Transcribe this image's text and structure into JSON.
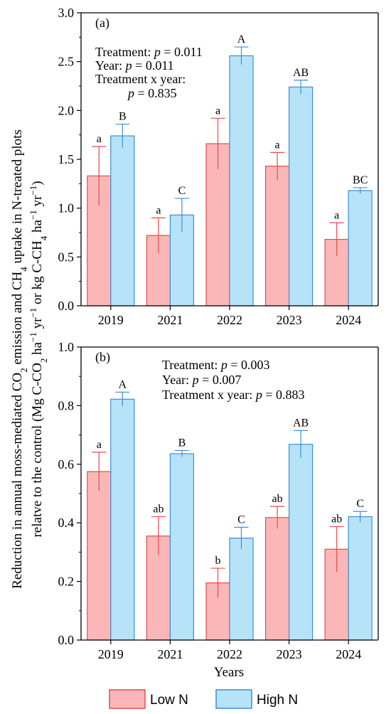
{
  "colors": {
    "low_fill": "#fbb7b7",
    "low_stroke": "#e84a4a",
    "high_fill": "#b7e3f9",
    "high_stroke": "#3a8fd8",
    "axis": "#000000"
  },
  "ylabel": {
    "line1_a": "Reduction in annual moss-mediated CO",
    "line1_sub1": "2",
    "line1_b": " emission and CH",
    "line1_sub2": "4",
    "line1_c": " uptake in N-treated plots",
    "line2_a": "relatve to the control (Mg C-CO",
    "line2_sub1": "2",
    "line2_b": " ha",
    "line2_sup1": "−1",
    "line2_c": " yr",
    "line2_sup2": "−1",
    "line2_d": " or kg C-CH",
    "line2_sub2": "4",
    "line2_e": " ha",
    "line2_sup3": "−1",
    "line2_f": " yr",
    "line2_sup4": "−1",
    "line2_g": ")"
  },
  "xlabel": "Years",
  "legend": {
    "low": "Low N",
    "high": "High N",
    "position": "bottom-center"
  },
  "chart_data": [
    {
      "type": "bar",
      "panel": "(a)",
      "categories": [
        "2019",
        "2021",
        "2022",
        "2023",
        "2024"
      ],
      "ylim": [
        0,
        3.0
      ],
      "yticks": [
        "0.0",
        "0.5",
        "1.0",
        "1.5",
        "2.0",
        "2.5",
        "3.0"
      ],
      "series": [
        {
          "name": "Low N",
          "values": [
            1.33,
            0.72,
            1.66,
            1.43,
            0.68
          ],
          "err": [
            0.3,
            0.18,
            0.26,
            0.14,
            0.17
          ],
          "letters": [
            "a",
            "a",
            "a",
            "a",
            "a"
          ]
        },
        {
          "name": "High N",
          "values": [
            1.74,
            0.93,
            2.56,
            2.24,
            1.18
          ],
          "err": [
            0.12,
            0.17,
            0.09,
            0.07,
            0.03
          ],
          "letters": [
            "B",
            "C",
            "A",
            "AB",
            "BC"
          ]
        }
      ],
      "stats": {
        "treatment_label": "Treatment: ",
        "treatment_p": "p",
        "treatment_val": " = 0.011",
        "year_label": "Year: ",
        "year_p": "p",
        "year_val": " = 0.011",
        "interaction_label": "Treatment x year:",
        "interaction_p": "p",
        "interaction_val": " = 0.835"
      }
    },
    {
      "type": "bar",
      "panel": "(b)",
      "categories": [
        "2019",
        "2021",
        "2022",
        "2023",
        "2024"
      ],
      "ylim": [
        0,
        1.0
      ],
      "yticks": [
        "0.0",
        "0.2",
        "0.4",
        "0.6",
        "0.8",
        "1.0"
      ],
      "series": [
        {
          "name": "Low N",
          "values": [
            0.575,
            0.355,
            0.195,
            0.418,
            0.31
          ],
          "err": [
            0.066,
            0.066,
            0.05,
            0.038,
            0.077
          ],
          "letters": [
            "a",
            "ab",
            "b",
            "ab",
            "ab"
          ]
        },
        {
          "name": "High N",
          "values": [
            0.822,
            0.636,
            0.348,
            0.668,
            0.421
          ],
          "err": [
            0.024,
            0.011,
            0.037,
            0.047,
            0.018
          ],
          "letters": [
            "A",
            "B",
            "C",
            "AB",
            "C"
          ]
        }
      ],
      "stats": {
        "treatment_label": "Treatment: ",
        "treatment_p": "p",
        "treatment_val": " = 0.003",
        "year_label": "Year: ",
        "year_p": "p",
        "year_val": " = 0.007",
        "interaction_label": "Treatment x year: ",
        "interaction_p": "p",
        "interaction_val": " = 0.883"
      }
    }
  ]
}
